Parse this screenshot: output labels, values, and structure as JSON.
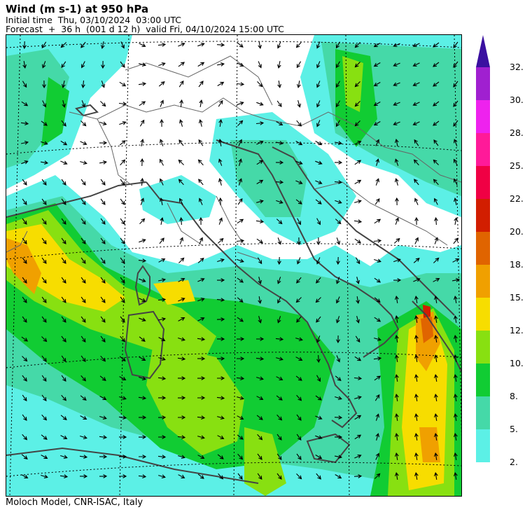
{
  "header": {
    "title": "Wind (m s-1) at 950 hPa",
    "initial_time": "Initial time  Thu, 03/10/2024  03:00 UTC",
    "forecast": "Forecast  +  36 h  (001 d 12 h)  valid Fri, 04/10/2024 15:00 UTC"
  },
  "footer": {
    "credit": "Moloch Model, CNR-ISAC, Italy"
  },
  "legend": {
    "bins": [
      {
        "label": "2.",
        "color": "#5cf0e6"
      },
      {
        "label": "5.",
        "color": "#45d9a8"
      },
      {
        "label": "8.",
        "color": "#11cc33"
      },
      {
        "label": "10.",
        "color": "#88e011"
      },
      {
        "label": "12.",
        "color": "#f7dd00"
      },
      {
        "label": "15.",
        "color": "#f0a000"
      },
      {
        "label": "18.",
        "color": "#e06400"
      },
      {
        "label": "20.",
        "color": "#d21e00"
      },
      {
        "label": "22.",
        "color": "#f00044"
      },
      {
        "label": "25.",
        "color": "#ff1a99"
      },
      {
        "label": "28.",
        "color": "#ee22ee"
      },
      {
        "label": "30.",
        "color": "#a020d0"
      }
    ],
    "top_label": "32.",
    "top_color": "#3a10a0"
  },
  "map_colors": {
    "coast": "#444444",
    "border": "#666666",
    "grid": "#000000",
    "arrow": "#000000"
  }
}
